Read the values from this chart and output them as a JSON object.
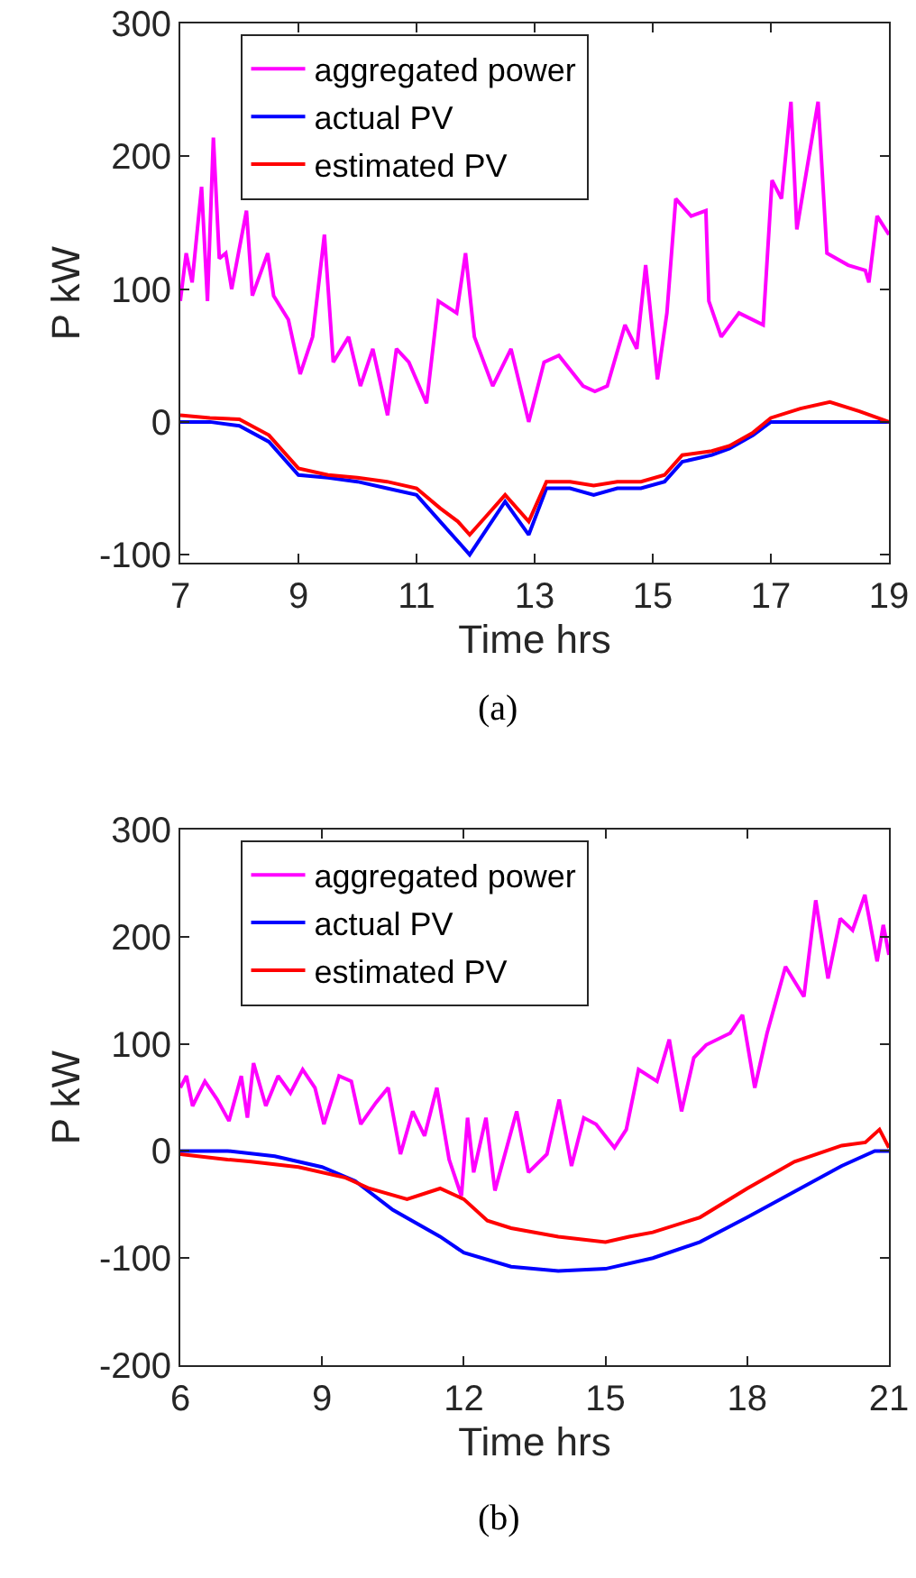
{
  "chart_data": [
    {
      "type": "line",
      "xlabel": "Time hrs",
      "ylabel": "P kW",
      "annotations": [
        "(a)"
      ],
      "xlim": [
        7,
        19
      ],
      "xticks": [
        7,
        9,
        11,
        13,
        15,
        17,
        19
      ],
      "ylim": [
        -106,
        300
      ],
      "yticks": [
        -100,
        0,
        100,
        200,
        300
      ],
      "legend": "top left",
      "marker": "none",
      "line_style": "solid",
      "series": [
        {
          "name": "aggregated power",
          "color": "#ff00ff",
          "x": [
            7.0,
            7.1,
            7.2,
            7.36,
            7.46,
            7.56,
            7.66,
            7.77,
            7.87,
            8.12,
            8.22,
            8.48,
            8.58,
            8.83,
            9.03,
            9.24,
            9.44,
            9.59,
            9.85,
            10.05,
            10.26,
            10.51,
            10.66,
            10.87,
            11.17,
            11.37,
            11.68,
            11.83,
            11.98,
            12.29,
            12.6,
            12.9,
            13.16,
            13.41,
            13.82,
            14.02,
            14.23,
            14.53,
            14.73,
            14.88,
            15.08,
            15.24,
            15.39,
            15.65,
            15.9,
            15.95,
            16.16,
            16.46,
            16.87,
            17.02,
            17.18,
            17.34,
            17.44,
            17.8,
            17.95,
            18.31,
            18.6,
            18.66,
            18.8,
            19.0
          ],
          "values": [
            91,
            127,
            105,
            177,
            91,
            214,
            123,
            127,
            100,
            159,
            95,
            127,
            95,
            77,
            36,
            64,
            141,
            45,
            64,
            27,
            55,
            5,
            55,
            45,
            14,
            91,
            82,
            127,
            64,
            27,
            55,
            0,
            45,
            50,
            27,
            23,
            27,
            73,
            55,
            118,
            32,
            82,
            168,
            155,
            159,
            91,
            64,
            82,
            73,
            182,
            168,
            241,
            145,
            241,
            127,
            118,
            114,
            105,
            155,
            141
          ]
        },
        {
          "name": "actual PV",
          "color": "#0000ff",
          "x": [
            7.0,
            7.5,
            8.0,
            8.5,
            9.0,
            9.5,
            10.0,
            10.5,
            11.0,
            11.4,
            11.7,
            11.9,
            12.2,
            12.5,
            12.9,
            13.2,
            13.6,
            14.0,
            14.4,
            14.8,
            15.2,
            15.5,
            16.0,
            16.3,
            16.7,
            17.0,
            18.0,
            19.0
          ],
          "values": [
            0,
            0,
            -3,
            -15,
            -40,
            -42,
            -45,
            -50,
            -55,
            -75,
            -90,
            -100,
            -80,
            -60,
            -85,
            -50,
            -50,
            -55,
            -50,
            -50,
            -45,
            -30,
            -25,
            -20,
            -10,
            0,
            0,
            0
          ]
        },
        {
          "name": "estimated PV",
          "color": "#ff0000",
          "x": [
            7.0,
            7.5,
            8.0,
            8.5,
            9.0,
            9.5,
            10.0,
            10.5,
            11.0,
            11.4,
            11.7,
            11.9,
            12.2,
            12.5,
            12.9,
            13.2,
            13.6,
            14.0,
            14.4,
            14.8,
            15.2,
            15.5,
            16.0,
            16.3,
            16.7,
            17.0,
            17.5,
            18.0,
            18.5,
            19.0
          ],
          "values": [
            5,
            3,
            2,
            -10,
            -35,
            -40,
            -42,
            -45,
            -50,
            -65,
            -75,
            -85,
            -70,
            -55,
            -75,
            -45,
            -45,
            -48,
            -45,
            -45,
            -40,
            -25,
            -22,
            -18,
            -8,
            3,
            10,
            15,
            8,
            0
          ]
        }
      ]
    },
    {
      "type": "line",
      "xlabel": "Time hrs",
      "ylabel": "P kW",
      "annotations": [
        "(b)"
      ],
      "xlim": [
        6,
        21
      ],
      "xticks": [
        6,
        9,
        12,
        15,
        18,
        21
      ],
      "ylim": [
        -200,
        300
      ],
      "yticks": [
        -200,
        -100,
        0,
        100,
        200,
        300
      ],
      "legend": "top left",
      "marker": "none",
      "line_style": "solid",
      "series": [
        {
          "name": "aggregated power",
          "color": "#ff00ff",
          "x": [
            6,
            6.13,
            6.26,
            6.52,
            6.78,
            7.03,
            7.29,
            7.42,
            7.55,
            7.81,
            8.07,
            8.33,
            8.59,
            8.85,
            9.04,
            9.36,
            9.62,
            9.82,
            10.14,
            10.4,
            10.66,
            10.92,
            11.17,
            11.43,
            11.69,
            11.95,
            12.08,
            12.21,
            12.47,
            12.66,
            13.12,
            13.37,
            13.76,
            14.02,
            14.28,
            14.54,
            14.8,
            15.19,
            15.44,
            15.7,
            16.09,
            16.35,
            16.61,
            16.87,
            17.13,
            17.64,
            17.9,
            18.16,
            18.42,
            18.81,
            19.2,
            19.45,
            19.71,
            19.97,
            20.23,
            20.49,
            20.75,
            20.88,
            21
          ],
          "values": [
            59,
            70,
            42,
            65,
            48,
            28,
            70,
            31,
            82,
            42,
            70,
            54,
            76,
            59,
            25,
            70,
            65,
            25,
            45,
            59,
            -3,
            37,
            14,
            59,
            -8,
            -42,
            31,
            -20,
            31,
            -37,
            37,
            -20,
            -3,
            48,
            -14,
            31,
            25,
            3,
            20,
            76,
            65,
            104,
            37,
            87,
            99,
            110,
            127,
            59,
            110,
            172,
            144,
            234,
            161,
            217,
            206,
            239,
            177,
            211,
            183
          ]
        },
        {
          "name": "actual PV",
          "color": "#0000ff",
          "x": [
            6,
            7,
            8,
            9,
            9.7,
            10.5,
            11.5,
            12,
            13,
            14,
            15,
            16,
            17,
            18,
            19,
            20,
            20.7,
            21
          ],
          "values": [
            0,
            0,
            -5,
            -15,
            -28,
            -55,
            -80,
            -95,
            -108,
            -112,
            -110,
            -100,
            -85,
            -62,
            -38,
            -14,
            0,
            0
          ]
        },
        {
          "name": "estimated PV",
          "color": "#ff0000",
          "x": [
            6,
            7,
            7.5,
            8.5,
            9.5,
            10,
            10.8,
            11.5,
            12,
            12.5,
            13,
            14,
            15,
            15.5,
            16,
            17,
            18,
            19,
            20,
            20.5,
            20.8,
            21
          ],
          "values": [
            -3,
            -8,
            -10,
            -15,
            -25,
            -35,
            -45,
            -35,
            -45,
            -65,
            -72,
            -80,
            -85,
            -80,
            -76,
            -62,
            -35,
            -10,
            5,
            8,
            20,
            3
          ]
        }
      ]
    }
  ]
}
